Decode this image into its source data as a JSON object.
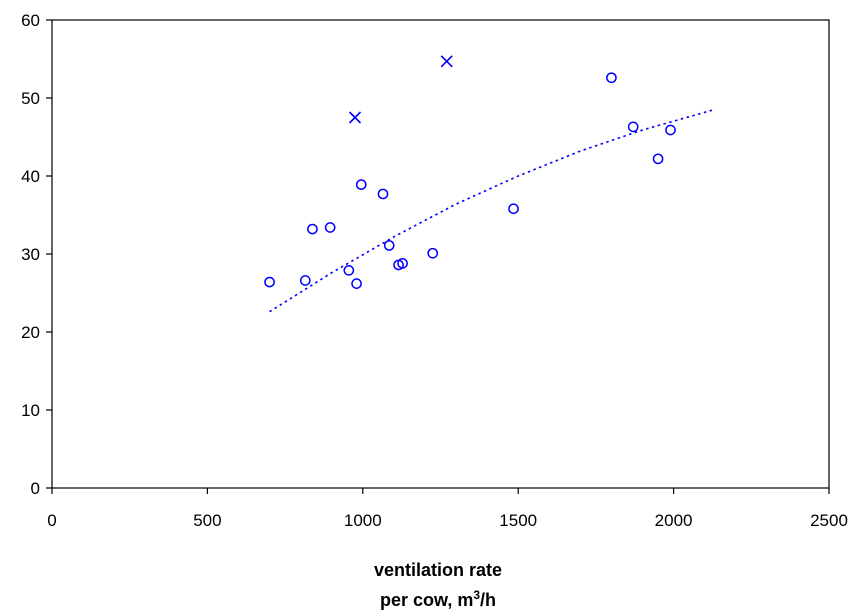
{
  "chart_data": {
    "type": "scatter",
    "title": "",
    "xlabel_line1": "ventilation rate",
    "xlabel_line2_pre": "per cow, m",
    "xlabel_line2_sup": "3",
    "xlabel_line2_post": "/h",
    "ylabel": "",
    "xlim": [
      0,
      2500
    ],
    "ylim": [
      0,
      60
    ],
    "xticks": [
      0,
      500,
      1000,
      1500,
      2000,
      2500
    ],
    "yticks": [
      0,
      10,
      20,
      30,
      40,
      50,
      60
    ],
    "grid": false,
    "legend": "none",
    "color": "#0000ff",
    "series": [
      {
        "marker": "circle",
        "points": [
          [
            700,
            26.4
          ],
          [
            815,
            26.6
          ],
          [
            838,
            33.2
          ],
          [
            895,
            33.4
          ],
          [
            955,
            27.9
          ],
          [
            980,
            26.2
          ],
          [
            995,
            38.9
          ],
          [
            1065,
            37.7
          ],
          [
            1085,
            31.1
          ],
          [
            1115,
            28.6
          ],
          [
            1128,
            28.8
          ],
          [
            1225,
            30.1
          ],
          [
            1485,
            35.8
          ],
          [
            1800,
            52.6
          ],
          [
            1870,
            46.3
          ],
          [
            1950,
            42.2
          ],
          [
            1990,
            45.9
          ]
        ]
      },
      {
        "marker": "cross",
        "points": [
          [
            975,
            47.5
          ],
          [
            1270,
            54.7
          ]
        ]
      }
    ],
    "trendline": {
      "style": "dotted",
      "x_range": [
        700,
        2130
      ],
      "points": [
        [
          700,
          22.6
        ],
        [
          900,
          27.6
        ],
        [
          1100,
          32.2
        ],
        [
          1300,
          36.4
        ],
        [
          1500,
          40.0
        ],
        [
          1700,
          43.2
        ],
        [
          1900,
          45.9
        ],
        [
          2130,
          48.5
        ]
      ]
    }
  }
}
